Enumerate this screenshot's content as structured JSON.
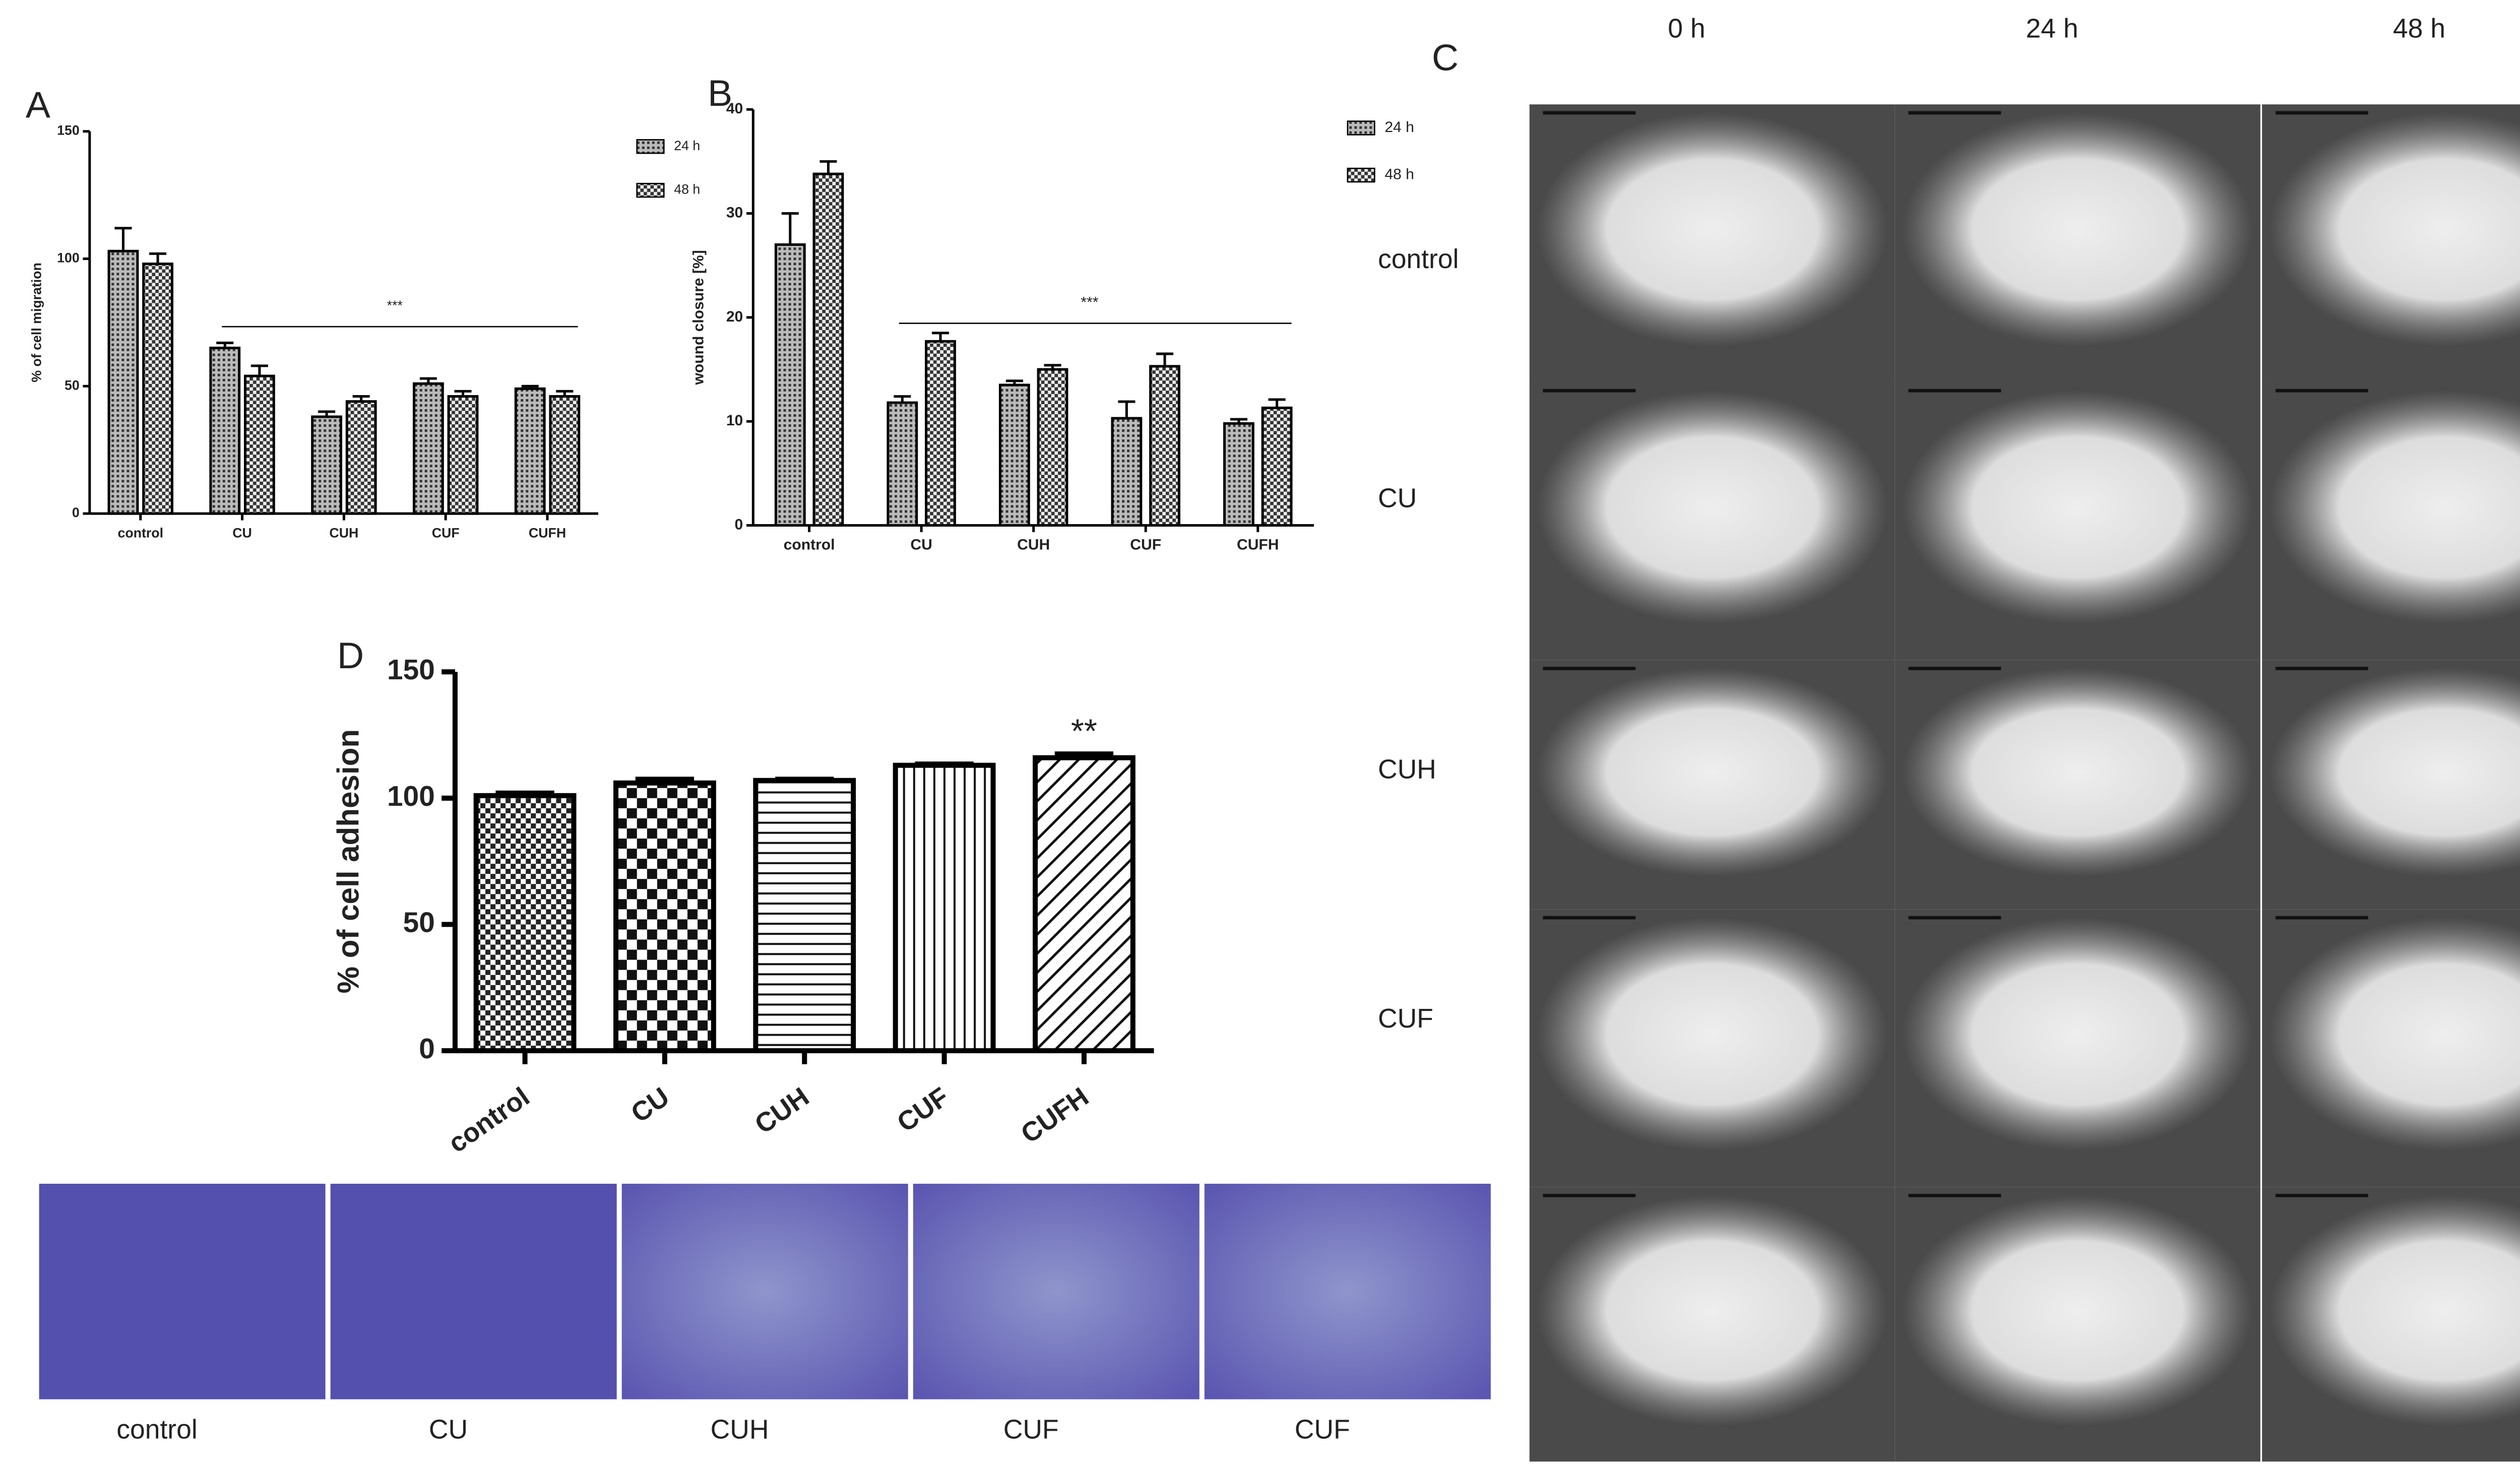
{
  "chart_data": [
    {
      "type": "bar",
      "panel_label": "A",
      "y_label": "% of cell migration",
      "categories": [
        "control",
        "CU",
        "CUH",
        "CUF",
        "CUFH"
      ],
      "series": [
        {
          "name": "24 h",
          "pattern": "dense",
          "values": [
            103,
            65,
            38,
            51,
            49
          ],
          "errors": [
            9,
            2,
            2,
            2,
            1
          ]
        },
        {
          "name": "48 h",
          "pattern": "check",
          "values": [
            98,
            54,
            44,
            46,
            46
          ],
          "errors": [
            4,
            4,
            2,
            2,
            2
          ]
        }
      ],
      "ylim": [
        0,
        150
      ],
      "yticks": [
        0,
        50,
        100,
        150
      ],
      "annotation": "***"
    },
    {
      "type": "bar",
      "panel_label": "B",
      "y_label": "wound closure [%]",
      "categories": [
        "control",
        "CU",
        "CUH",
        "CUF",
        "CUFH"
      ],
      "series": [
        {
          "name": "24 h",
          "pattern": "dense",
          "values": [
            27,
            11.8,
            13.5,
            10.3,
            9.8
          ],
          "errors": [
            3,
            0.6,
            0.4,
            1.6,
            0.4
          ]
        },
        {
          "name": "48 h",
          "pattern": "check",
          "values": [
            33.8,
            17.7,
            15,
            15.3,
            11.3
          ],
          "errors": [
            1.2,
            0.8,
            0.4,
            1.2,
            0.8
          ]
        }
      ],
      "ylim": [
        0,
        40
      ],
      "yticks": [
        0,
        10,
        20,
        30,
        40
      ],
      "annotation": "***"
    },
    {
      "type": "bar",
      "panel_label": "D",
      "y_label": "% of cell adhesion",
      "categories": [
        "control",
        "CU",
        "CUH",
        "CUF",
        "CUFH"
      ],
      "values": [
        101,
        106,
        107,
        113,
        116
      ],
      "errors": [
        1,
        1.5,
        0.5,
        0.5,
        1.5
      ],
      "patterns": [
        "small-check",
        "big-check",
        "hlines",
        "vlines",
        "diag"
      ],
      "ylim": [
        0,
        150
      ],
      "yticks": [
        0,
        50,
        100,
        150
      ],
      "annotation": "**"
    }
  ],
  "image_panel": {
    "panel_label": "C",
    "columns": [
      "0 h",
      "24 h",
      "48 h"
    ],
    "rows": [
      "control",
      "CU",
      "CUH",
      "CUF"
    ]
  },
  "stain_images": {
    "labels": [
      "control",
      "CU",
      "CUH",
      "CUF",
      "CUF"
    ]
  }
}
